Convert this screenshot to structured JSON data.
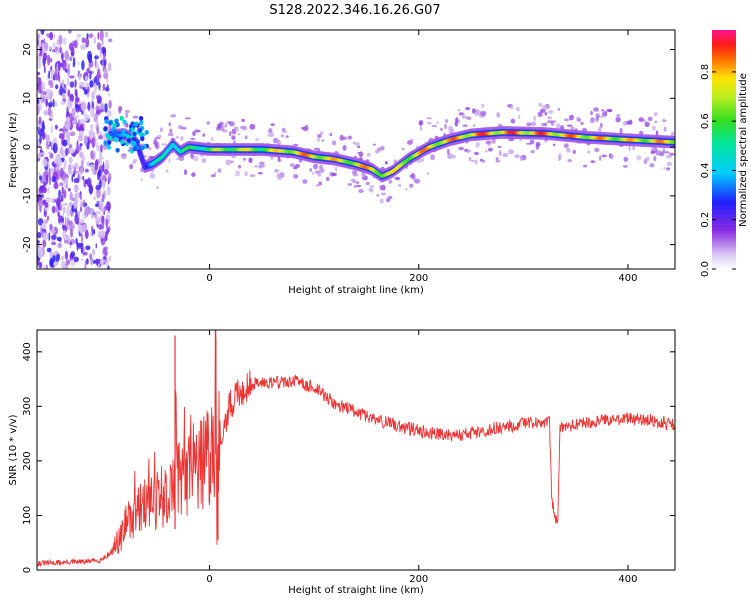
{
  "figure_title": "S128.2022.346.16.26.G07",
  "chart_data": [
    {
      "type": "heatmap",
      "name": "spectrogram",
      "xlabel": "Height of straight line (km)",
      "ylabel": "Frequency (Hz)",
      "xlim": [
        -165,
        445
      ],
      "ylim": [
        -25,
        24
      ],
      "xticks": [
        0,
        200,
        400
      ],
      "yticks": [
        -20,
        -10,
        0,
        10,
        20
      ],
      "colorbar": {
        "label": "Normalized spectral amplitude",
        "range": [
          0,
          0.97
        ],
        "ticks": [
          0.0,
          0.2,
          0.4,
          0.6,
          0.8
        ],
        "tick_labels": [
          "0.0",
          "0.2",
          "0.4",
          "0.6",
          "0.8"
        ],
        "colormap": "rainbow (white-purple-blue-cyan-green-yellow-red-pink)"
      },
      "ridge": {
        "x": [
          -95,
          -80,
          -70,
          -62,
          -55,
          -45,
          -35,
          -28,
          -20,
          0,
          25,
          50,
          80,
          100,
          120,
          140,
          155,
          165,
          175,
          190,
          210,
          230,
          250,
          280,
          320,
          360,
          400,
          445
        ],
        "frequency": [
          2.5,
          2.5,
          1.0,
          -4.0,
          -3.5,
          -2.0,
          0.5,
          -1.0,
          0.0,
          -0.5,
          -0.5,
          -0.5,
          -1.0,
          -2.0,
          -2.5,
          -3.5,
          -4.5,
          -6.0,
          -5.0,
          -2.5,
          0.0,
          1.5,
          2.5,
          3.0,
          2.8,
          2.0,
          1.5,
          1.0
        ],
        "amplitude": [
          0.45,
          0.4,
          0.35,
          0.3,
          0.45,
          0.55,
          0.6,
          0.55,
          0.6,
          0.7,
          0.8,
          0.75,
          0.9,
          0.9,
          0.85,
          0.85,
          0.9,
          0.85,
          0.8,
          0.85,
          0.9,
          0.9,
          0.95,
          0.95,
          0.95,
          0.9,
          0.85,
          0.9
        ]
      }
    },
    {
      "type": "line",
      "name": "snr",
      "xlabel": "Height of straight line (km)",
      "ylabel": "SNR (10 * v/v)",
      "xlim": [
        -165,
        445
      ],
      "ylim": [
        0,
        440
      ],
      "xticks": [
        0,
        200,
        400
      ],
      "yticks": [
        0,
        100,
        200,
        300,
        400
      ],
      "color": "#ee3333",
      "x": [
        -165,
        -140,
        -120,
        -105,
        -95,
        -85,
        -78,
        -70,
        -60,
        -50,
        -40,
        -33,
        -32,
        -30,
        -20,
        -10,
        0,
        5,
        6,
        7,
        8,
        10,
        20,
        30,
        40,
        55,
        70,
        85,
        90,
        100,
        110,
        120,
        140,
        160,
        180,
        200,
        220,
        240,
        260,
        280,
        300,
        320,
        325,
        327,
        330,
        333,
        335,
        340,
        360,
        380,
        400,
        420,
        445
      ],
      "y": [
        12,
        14,
        15,
        18,
        30,
        60,
        90,
        110,
        120,
        130,
        140,
        150,
        430,
        160,
        175,
        190,
        210,
        240,
        425,
        60,
        230,
        250,
        300,
        330,
        340,
        345,
        345,
        345,
        340,
        335,
        320,
        305,
        290,
        275,
        265,
        255,
        250,
        248,
        255,
        262,
        268,
        270,
        270,
        140,
        90,
        90,
        260,
        262,
        270,
        275,
        278,
        275,
        265
      ],
      "spikes": [
        {
          "x": -33,
          "y_max": 430
        },
        {
          "x": 6,
          "y_max": 425
        },
        {
          "x": 8,
          "y_min": 55
        },
        {
          "x": 330,
          "y_min": 90
        }
      ]
    }
  ]
}
